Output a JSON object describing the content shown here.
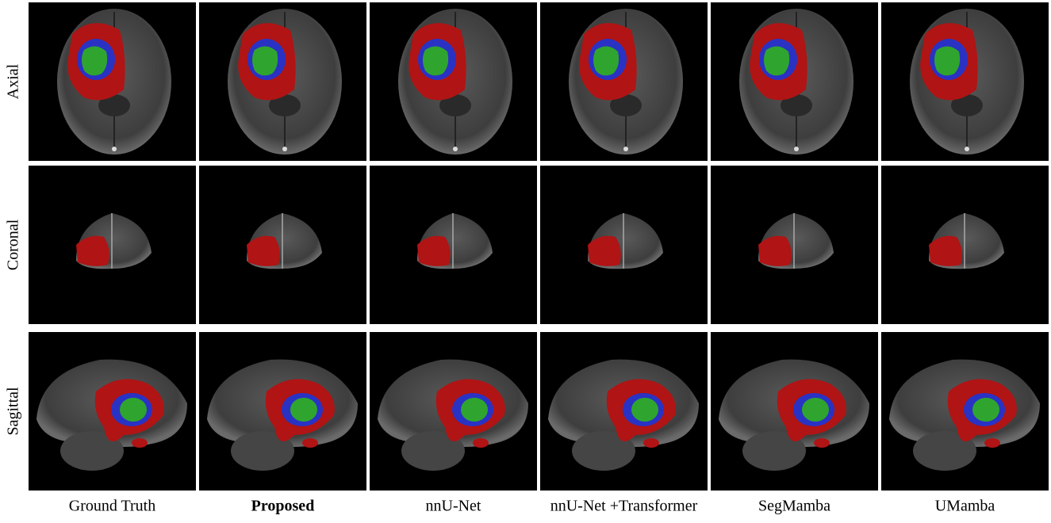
{
  "figure": {
    "rows": [
      "Axial",
      "Coronal",
      "Sagittal"
    ],
    "columns": [
      "Ground Truth",
      "Proposed",
      "nnU-Net",
      "nnU-Net +Transformer",
      "SegMamba",
      "UMamba"
    ]
  }
}
